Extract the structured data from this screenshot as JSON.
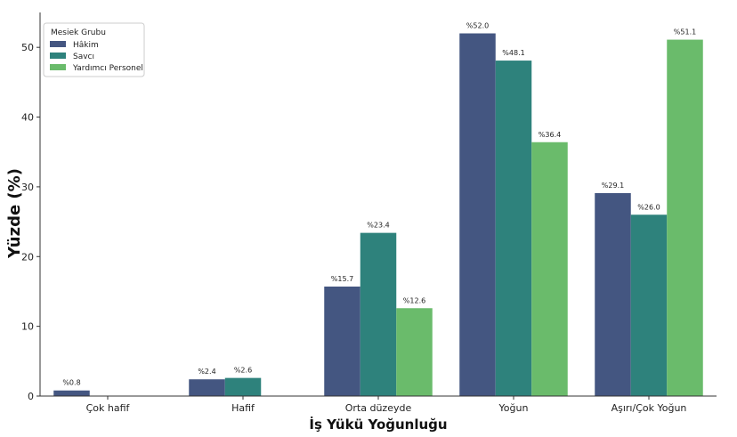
{
  "chart_data": {
    "type": "bar",
    "title": "",
    "xlabel": "İş Yükü Yoğunluğu",
    "ylabel": "Yüzde (%)",
    "ylim": [
      0,
      55
    ],
    "yticks": [
      0,
      10,
      20,
      30,
      40,
      50
    ],
    "grid": false,
    "categories": [
      "Çok hafif",
      "Hafif",
      "Orta düzeyde",
      "Yoğun",
      "Aşırı/Çok Yoğun"
    ],
    "legend": {
      "title": "Mesiek Grubu",
      "placement": "top-left"
    },
    "series": [
      {
        "name": "Hâkim",
        "color": "#445681",
        "values": [
          0.8,
          2.4,
          15.7,
          52.0,
          29.1
        ],
        "labels": [
          "%0.8",
          "%2.4",
          "%15.7",
          "%52.0",
          "%29.1"
        ]
      },
      {
        "name": "Savcı",
        "color": "#2e827c",
        "values": [
          null,
          2.6,
          23.4,
          48.1,
          26.0
        ],
        "labels": [
          "",
          "%2.6",
          "%23.4",
          "%48.1",
          "%26.0"
        ]
      },
      {
        "name": "Yardımcı Personel",
        "color": "#6abb6b",
        "values": [
          null,
          null,
          12.6,
          36.4,
          51.1
        ],
        "labels": [
          "",
          "",
          "%12.6",
          "%36.4",
          "%51.1"
        ]
      }
    ]
  }
}
